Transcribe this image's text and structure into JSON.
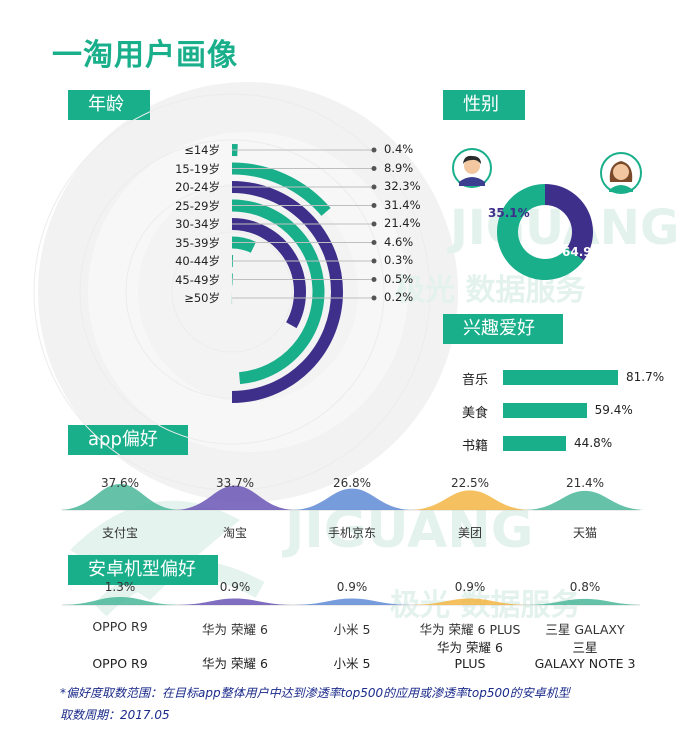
{
  "page": {
    "title": "一淘用户画像",
    "watermark_brand": "JIGUANG",
    "watermark_sub": "极光 数据服务"
  },
  "sections": {
    "age": "年龄",
    "gender": "性别",
    "interests": "兴趣爱好",
    "app": "app偏好",
    "phone": "安卓机型偏好"
  },
  "colors": {
    "green": "#1aaf8b",
    "purple": "#3d2f8a",
    "grid": "#d9d9d9"
  },
  "chart_data": [
    {
      "type": "bar",
      "name": "age",
      "categories": [
        "≤14岁",
        "15-19岁",
        "20-24岁",
        "25-29岁",
        "30-34岁",
        "35-39岁",
        "40-44岁",
        "45-49岁",
        "≥50岁"
      ],
      "values": [
        0.4,
        8.9,
        32.3,
        31.4,
        21.4,
        4.6,
        0.3,
        0.5,
        0.2
      ],
      "labels": [
        "0.4%",
        "8.9%",
        "32.3%",
        "31.4%",
        "21.4%",
        "4.6%",
        "0.3%",
        "0.5%",
        "0.2%"
      ],
      "series_colors": [
        "green",
        "green",
        "purple",
        "green",
        "purple",
        "green",
        "green",
        "green",
        "green"
      ]
    },
    {
      "type": "pie",
      "name": "gender",
      "categories": [
        "male",
        "female"
      ],
      "values": [
        35.1,
        64.9
      ],
      "labels": [
        "35.1%",
        "64.9%"
      ]
    },
    {
      "type": "bar",
      "name": "interests",
      "categories": [
        "音乐",
        "美食",
        "书籍"
      ],
      "values": [
        81.7,
        59.4,
        44.8
      ],
      "labels": [
        "81.7%",
        "59.4%",
        "44.8%"
      ]
    },
    {
      "type": "area",
      "name": "app",
      "categories": [
        "支付宝",
        "淘宝",
        "手机京东",
        "美团",
        "天猫"
      ],
      "values": [
        37.6,
        33.7,
        26.8,
        22.5,
        21.4
      ],
      "labels": [
        "37.6%",
        "33.7%",
        "26.8%",
        "22.5%",
        "21.4%"
      ],
      "colors": [
        "#4ab79a",
        "#6a55b5",
        "#5f8bd6",
        "#f2b544",
        "#4ab79a"
      ]
    },
    {
      "type": "area",
      "name": "phone",
      "categories": [
        "OPPO R9",
        "华为 荣耀 6",
        "小米 5",
        "华为 荣耀 6 PLUS",
        "三星 GALAXY"
      ],
      "values": [
        1.3,
        0.9,
        0.9,
        0.9,
        0.8
      ],
      "labels": [
        "1.3%",
        "0.9%",
        "0.9%",
        "0.9%",
        "0.8%"
      ],
      "colors": [
        "#4ab79a",
        "#6a55b5",
        "#5f8bd6",
        "#f2b544",
        "#4ab79a"
      ]
    }
  ],
  "phone_names_bottom": [
    "OPPO R9",
    "华为 荣耀 6",
    "小米 5",
    "华为 荣耀 6\nPLUS",
    "三星\nGALAXY NOTE 3"
  ],
  "footnote": {
    "line1": "*偏好度取数范围：在目标app整体用户中达到渗透率top500的应用或渗透率top500的安卓机型",
    "line2": "取数周期：2017.05"
  }
}
